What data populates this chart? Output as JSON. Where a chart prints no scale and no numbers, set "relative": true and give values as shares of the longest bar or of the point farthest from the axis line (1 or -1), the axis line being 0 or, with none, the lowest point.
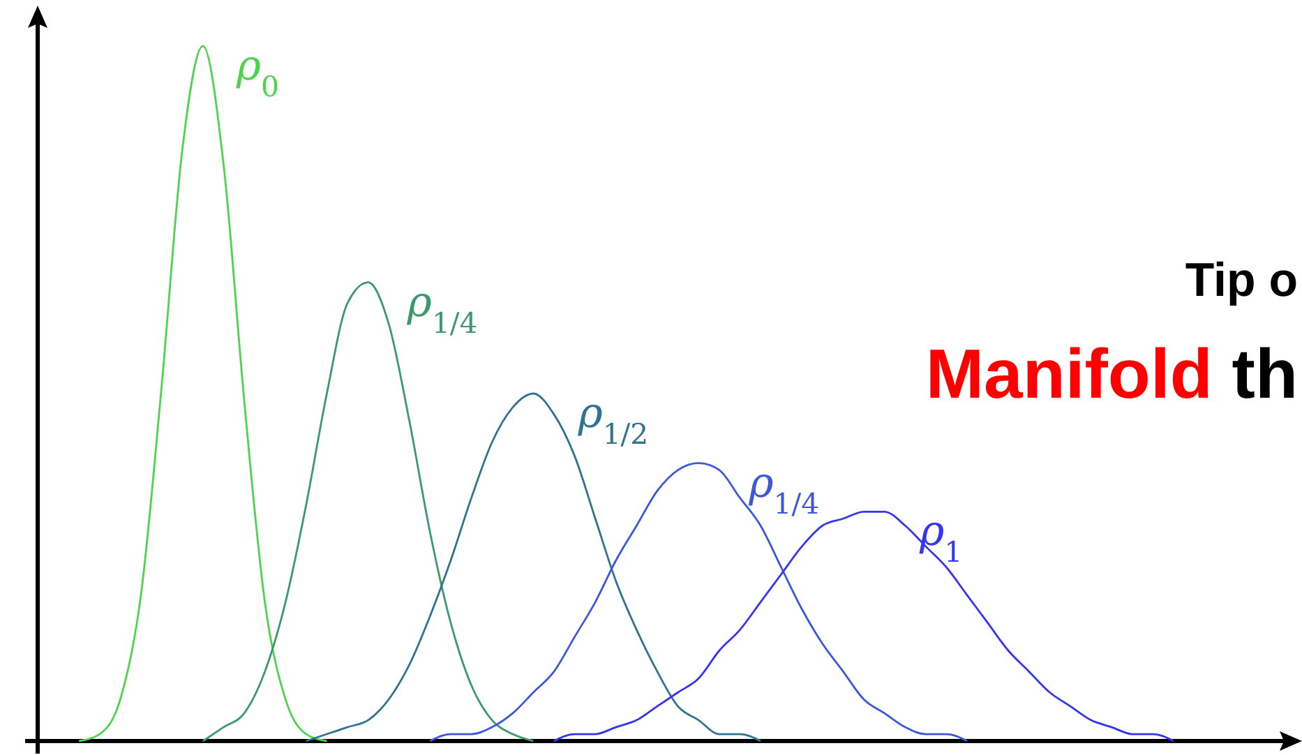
{
  "chart_data": {
    "type": "line",
    "relative": true,
    "legend": false,
    "marker": "none",
    "line_style": "solid",
    "categories": [
      null,
      null,
      null,
      null,
      null,
      null,
      null,
      null,
      null,
      null,
      null,
      null,
      null,
      null,
      null,
      null,
      null,
      null,
      null,
      null,
      null,
      null,
      null,
      null,
      null,
      null,
      null,
      null,
      null,
      null,
      null,
      null,
      null,
      null,
      null,
      null,
      null,
      null,
      null,
      null,
      null,
      null,
      null,
      null,
      null,
      null,
      null,
      null,
      null,
      null,
      null,
      null,
      null,
      null,
      null,
      null,
      null,
      null,
      null,
      null,
      null
    ],
    "series": [
      {
        "name": "ρ$_{0}$",
        "color": "#4fd34f",
        "values": [
          null,
          null,
          0,
          0.01,
          0.06,
          0.21,
          0.51,
          0.85,
          1,
          0.83,
          0.49,
          0.2,
          0.06,
          0.01,
          0,
          null,
          null,
          null,
          null,
          null,
          null,
          null,
          null,
          null,
          null,
          null,
          null,
          null,
          null,
          null,
          null,
          null,
          null,
          null,
          null,
          null,
          null,
          null,
          null,
          null,
          null,
          null,
          null,
          null,
          null,
          null,
          null,
          null,
          null,
          null,
          null,
          null,
          null,
          null,
          null,
          null,
          null,
          null,
          null,
          null,
          null
        ]
      },
      {
        "name": "ρ$_{1/4}$",
        "color": "#3a9a6e",
        "values": [
          null,
          null,
          null,
          null,
          null,
          null,
          null,
          null,
          0,
          0.02,
          0.04,
          0.1,
          0.2,
          0.34,
          0.5,
          0.63,
          0.66,
          0.6,
          0.46,
          0.3,
          0.17,
          0.08,
          0.03,
          0.01,
          0,
          null,
          null,
          null,
          null,
          null,
          null,
          null,
          null,
          null,
          null,
          null,
          null,
          null,
          null,
          null,
          null,
          null,
          null,
          null,
          null,
          null,
          null,
          null,
          null,
          null,
          null,
          null,
          null,
          null,
          null,
          null,
          null,
          null,
          null,
          null,
          null
        ]
      },
      {
        "name": "ρ$_{1/2}$",
        "color": "#2f7391",
        "values": [
          null,
          null,
          null,
          null,
          null,
          null,
          null,
          null,
          null,
          null,
          null,
          null,
          null,
          0,
          0.01,
          0.02,
          0.03,
          0.06,
          0.11,
          0.18,
          0.26,
          0.35,
          0.43,
          0.48,
          0.5,
          0.47,
          0.41,
          0.32,
          0.23,
          0.16,
          0.1,
          0.05,
          0.03,
          0.01,
          0.01,
          0,
          null,
          null,
          null,
          null,
          null,
          null,
          null,
          null,
          null,
          null,
          null,
          null,
          null,
          null,
          null,
          null,
          null,
          null,
          null,
          null,
          null,
          null,
          null,
          null,
          null
        ]
      },
      {
        "name": "ρ$_{1/4}$",
        "color": "#3d58d6",
        "values": [
          null,
          null,
          null,
          null,
          null,
          null,
          null,
          null,
          null,
          null,
          null,
          null,
          null,
          null,
          null,
          null,
          null,
          null,
          null,
          0,
          0.01,
          0.01,
          0.02,
          0.04,
          0.07,
          0.1,
          0.15,
          0.2,
          0.26,
          0.31,
          0.36,
          0.39,
          0.4,
          0.39,
          0.35,
          0.31,
          0.25,
          0.19,
          0.14,
          0.1,
          0.06,
          0.04,
          0.02,
          0.01,
          0.01,
          0,
          null,
          null,
          null,
          null,
          null,
          null,
          null,
          null,
          null,
          null,
          null,
          null,
          null,
          null,
          null
        ]
      },
      {
        "name": "ρ$_{1}$",
        "color": "#3535f0",
        "values": [
          null,
          null,
          null,
          null,
          null,
          null,
          null,
          null,
          null,
          null,
          null,
          null,
          null,
          null,
          null,
          null,
          null,
          null,
          null,
          null,
          null,
          null,
          null,
          null,
          null,
          0,
          0.01,
          0.01,
          0.02,
          0.03,
          0.05,
          0.07,
          0.09,
          0.13,
          0.16,
          0.2,
          0.24,
          0.28,
          0.31,
          0.32,
          0.33,
          0.33,
          0.31,
          0.28,
          0.25,
          0.21,
          0.17,
          0.13,
          0.1,
          0.07,
          0.05,
          0.03,
          0.02,
          0.01,
          0.01,
          0,
          null,
          null,
          null,
          null,
          null
        ]
      }
    ],
    "annotations": [
      "Tip o",
      "Manifold th"
    ]
  }
}
